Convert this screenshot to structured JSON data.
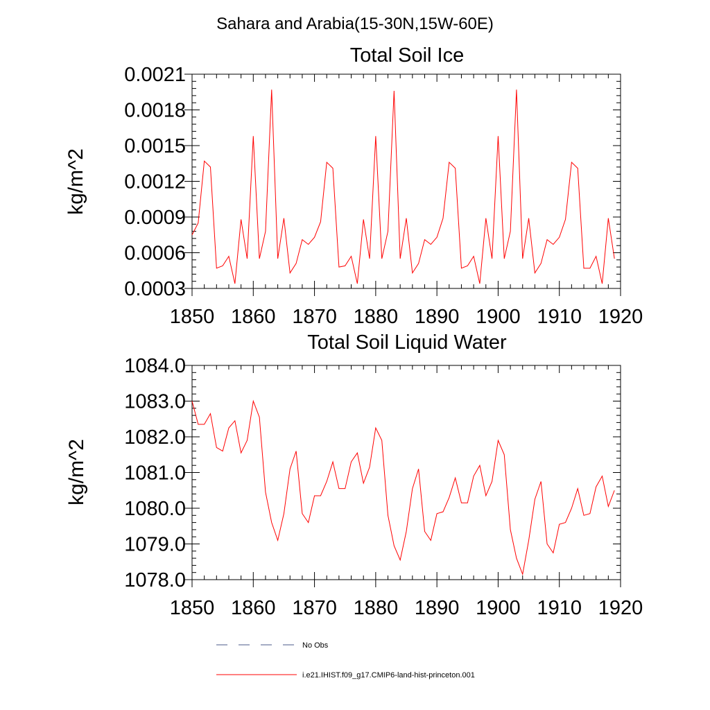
{
  "figure": {
    "suptitle": "Sahara and Arabia(15-30N,15W-60E)",
    "legend": [
      {
        "label": "No Obs",
        "color": "#4a5a8a",
        "dash": true
      },
      {
        "label": "i.e21.IHIST.f09_g17.CMIP6-land-hist-princeton.001",
        "color": "#ff0000",
        "dash": false
      }
    ]
  },
  "chart_data": [
    {
      "type": "line",
      "title": "Total Soil Ice",
      "xlabel": "",
      "ylabel": "kg/m^2",
      "xlim": [
        1850,
        1920
      ],
      "ylim": [
        0.0003,
        0.0021
      ],
      "xticks": [
        1850,
        1860,
        1870,
        1880,
        1890,
        1900,
        1910,
        1920
      ],
      "yticks": [
        0.0003,
        0.0006,
        0.0009,
        0.0012,
        0.0015,
        0.0018,
        0.0021
      ],
      "ytick_labels": [
        "0.0003",
        "0.0006",
        "0.0009",
        "0.0012",
        "0.0015",
        "0.0018",
        "0.0021"
      ],
      "series": [
        {
          "color": "#ff0000",
          "x_start": 1850,
          "values": [
            0.00075,
            0.00085,
            0.00137,
            0.00132,
            0.00047,
            0.00049,
            0.00057,
            0.00034,
            0.00088,
            0.00055,
            0.00158,
            0.00055,
            0.00078,
            0.00197,
            0.00055,
            0.00089,
            0.00043,
            0.00051,
            0.00071,
            0.00067,
            0.00073,
            0.00086,
            0.00136,
            0.00131,
            0.00048,
            0.00049,
            0.00057,
            0.00034,
            0.00088,
            0.00055,
            0.00158,
            0.00055,
            0.00078,
            0.00196,
            0.00055,
            0.00089,
            0.00043,
            0.00051,
            0.00071,
            0.00067,
            0.00073,
            0.00089,
            0.00136,
            0.00131,
            0.00047,
            0.00049,
            0.00057,
            0.00034,
            0.00089,
            0.00055,
            0.00158,
            0.00055,
            0.00078,
            0.00197,
            0.00055,
            0.00089,
            0.00043,
            0.00051,
            0.00071,
            0.00067,
            0.00073,
            0.00088,
            0.00136,
            0.00131,
            0.00047,
            0.00047,
            0.00057,
            0.00034,
            0.00089,
            0.00055
          ]
        }
      ]
    },
    {
      "type": "line",
      "title": "Total Soil Liquid Water",
      "xlabel": "",
      "ylabel": "kg/m^2",
      "xlim": [
        1850,
        1920
      ],
      "ylim": [
        1078.0,
        1084.0
      ],
      "xticks": [
        1850,
        1860,
        1870,
        1880,
        1890,
        1900,
        1910,
        1920
      ],
      "yticks": [
        1078.0,
        1079.0,
        1080.0,
        1081.0,
        1082.0,
        1083.0,
        1084.0
      ],
      "ytick_labels": [
        "1078.0",
        "1079.0",
        "1080.0",
        "1081.0",
        "1082.0",
        "1083.0",
        "1084.0"
      ],
      "series": [
        {
          "color": "#ff0000",
          "x_start": 1850,
          "values": [
            1083.0,
            1082.35,
            1082.35,
            1082.65,
            1081.7,
            1081.6,
            1082.25,
            1082.45,
            1081.55,
            1081.9,
            1083.0,
            1082.55,
            1080.45,
            1079.6,
            1079.1,
            1079.85,
            1081.1,
            1081.6,
            1079.85,
            1079.6,
            1080.35,
            1080.35,
            1080.75,
            1081.3,
            1080.55,
            1080.55,
            1081.3,
            1081.55,
            1080.7,
            1081.15,
            1082.25,
            1081.9,
            1079.8,
            1078.95,
            1078.55,
            1079.35,
            1080.55,
            1081.1,
            1079.35,
            1079.1,
            1079.85,
            1079.9,
            1080.3,
            1080.85,
            1080.15,
            1080.15,
            1080.9,
            1081.2,
            1080.35,
            1080.75,
            1081.9,
            1081.5,
            1079.4,
            1078.6,
            1078.15,
            1079.1,
            1080.25,
            1080.75,
            1079.0,
            1078.75,
            1079.55,
            1079.6,
            1080.0,
            1080.55,
            1079.8,
            1079.85,
            1080.6,
            1080.9,
            1080.05,
            1080.5
          ]
        }
      ]
    }
  ]
}
